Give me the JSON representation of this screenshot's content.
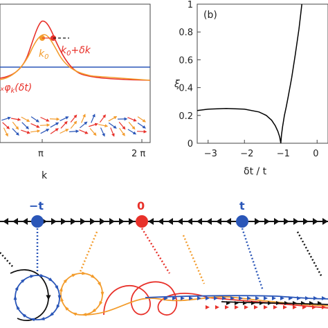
{
  "chart_data": [
    {
      "type": "line",
      "panel": "a",
      "xlabel": "k",
      "x_ticks": [
        "π",
        "2 π"
      ],
      "annotations": [
        "k0",
        "k0+δk",
        "φk(δt)"
      ],
      "series": [
        {
          "color": "#e8312a",
          "values": []
        },
        {
          "color": "#f39c2c",
          "values": []
        },
        {
          "color": "#2a56b8",
          "values": []
        }
      ]
    },
    {
      "type": "line",
      "panel": "b",
      "title": "(b)",
      "xlabel": "δt / t",
      "ylabel": "ξ",
      "xlim": [
        -3.3,
        0.3
      ],
      "ylim": [
        0,
        1
      ],
      "x_ticks": [
        "-3",
        "-2",
        "-1",
        "0"
      ],
      "y_ticks": [
        "0",
        "0.2",
        "0.4",
        "0.6",
        "0.8",
        "1"
      ],
      "x": [
        -3.3,
        -3.0,
        -2.5,
        -2.0,
        -1.6,
        -1.4,
        -1.25,
        -1.15,
        -1.08,
        -1.03,
        -1.0,
        -0.98,
        -0.95,
        -0.9,
        -0.85,
        -0.8,
        -0.7,
        -0.6,
        -0.5,
        -0.45,
        -0.42
      ],
      "series": [
        {
          "color": "#000000",
          "values": [
            0.235,
            0.245,
            0.25,
            0.245,
            0.225,
            0.2,
            0.165,
            0.125,
            0.085,
            0.045,
            0.0,
            0.06,
            0.12,
            0.2,
            0.26,
            0.33,
            0.47,
            0.64,
            0.82,
            0.93,
            1.0
          ]
        }
      ]
    }
  ],
  "chain": {
    "sites": [
      "−t",
      "0",
      "t"
    ],
    "colors": {
      "site_blue": "#2a56b8",
      "site_red": "#e8312a",
      "orange": "#f39c2c",
      "black": "#111111"
    }
  }
}
